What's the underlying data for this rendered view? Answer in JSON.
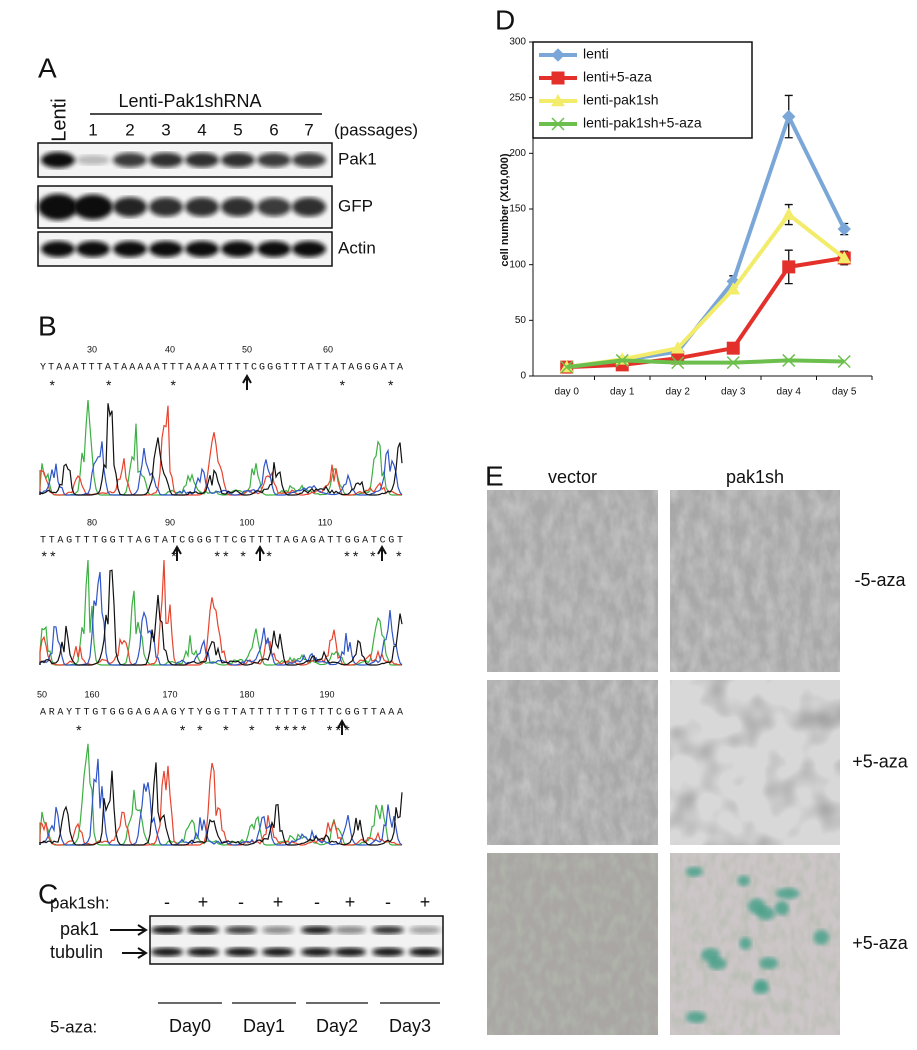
{
  "panel_a": {
    "letter": "A",
    "control": "Lenti",
    "group": "Lenti-Pak1shRNA",
    "lanes": [
      "1",
      "2",
      "3",
      "4",
      "5",
      "6",
      "7"
    ],
    "lane_unit": "(passages)",
    "bands": [
      "Pak1",
      "GFP",
      "Actin"
    ]
  },
  "panel_b": {
    "letter": "B",
    "rows": [
      {
        "ruler": [
          "30",
          "40",
          "50",
          "60"
        ],
        "sequence": "YTAAATTTATAAAAATTTAAAATTTTCGGGTTTATTATAGGGATA",
        "marks": " *      *       *                    *     * "
      },
      {
        "ruler": [
          "80",
          "90",
          "100",
          "110"
        ],
        "sequence": "TTAGTTTGGTTAGTATCGGGTTCGTTTTAGAGATTGGATCGT",
        "marks": "**             *    ** *  *        ** *  *"
      },
      {
        "ruler": [
          "50",
          "160",
          "170",
          "180",
          "190"
        ],
        "sequence": "ARAYTTGTGGGAGAAGYTYGGTTATTTTTTGTTTCGGTTAAA",
        "marks": "    *           * *  *  *  ****  ***      "
      }
    ]
  },
  "panel_c": {
    "letter": "C",
    "row_label": "pak1sh:",
    "lanes": [
      "-",
      "+",
      "-",
      "+",
      "-",
      "+",
      "-",
      "+"
    ],
    "bands": [
      "pak1",
      "tubulin"
    ],
    "group_label": "5-aza:",
    "groups": [
      "Day0",
      "Day1",
      "Day2",
      "Day3"
    ]
  },
  "panel_d": {
    "letter": "D"
  },
  "chart_data": {
    "type": "line",
    "y_label": "cell number (X10,000)",
    "categories": [
      "day 0",
      "day 1",
      "day 2",
      "day 3",
      "day 4",
      "day 5"
    ],
    "ylim": [
      0,
      300
    ],
    "yticks": [
      0,
      50,
      100,
      150,
      200,
      250,
      300
    ],
    "legend": "top-left",
    "series": [
      {
        "name": "lenti",
        "color": "#7ba7d8",
        "marker": "diamond",
        "values": [
          8,
          14,
          22,
          85,
          233,
          132
        ],
        "errors": [
          null,
          null,
          null,
          5,
          19,
          5
        ]
      },
      {
        "name": "lenti+5-aza",
        "color": "#e3302a",
        "marker": "square",
        "values": [
          8,
          10,
          16,
          25,
          98,
          106
        ],
        "errors": [
          null,
          null,
          null,
          null,
          15,
          6
        ]
      },
      {
        "name": "lenti-pak1sh",
        "color": "#f2ec6a",
        "marker": "triangle",
        "values": [
          8,
          15,
          25,
          78,
          145,
          106
        ],
        "errors": [
          null,
          null,
          null,
          null,
          9,
          null
        ]
      },
      {
        "name": "lenti-pak1sh+5-aza",
        "color": "#6cbf4c",
        "marker": "cross",
        "values": [
          8,
          14,
          12,
          12,
          14,
          13
        ]
      }
    ]
  },
  "panel_e": {
    "letter": "E",
    "columns": [
      "vector",
      "pak1sh"
    ],
    "rows": [
      "-5-aza",
      "+5-aza",
      "+5-aza"
    ]
  }
}
